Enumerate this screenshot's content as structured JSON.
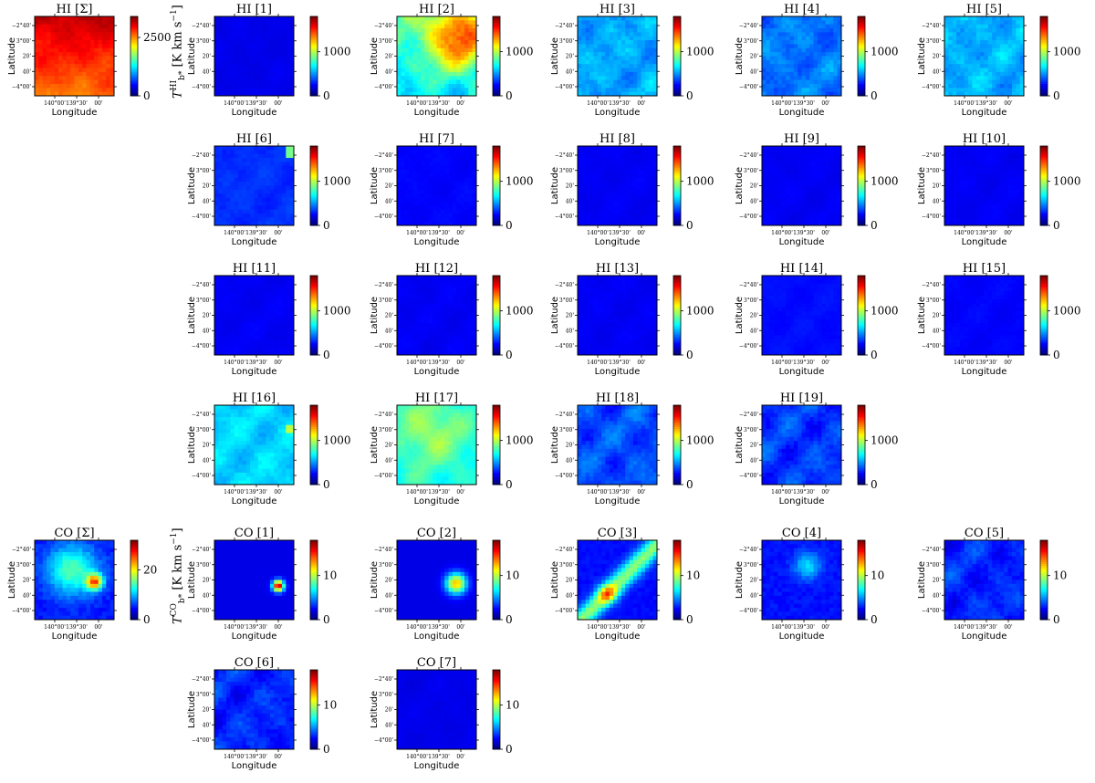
{
  "figure": {
    "hi_unit_label": "T_b*^HI [K km s^-1]",
    "co_unit_label": "T_b*^CO [K km s^-1]"
  },
  "chart_data": {
    "type": "heatmap",
    "common": {
      "xlabel": "Longitude",
      "ylabel": "Latitude",
      "x_ticks": [
        "140°00'",
        "139°30'",
        "00'"
      ],
      "y_ticks": [
        "−2°40'",
        "3°00'",
        "20'",
        "40'",
        "−4°00'"
      ],
      "colormap": "jet"
    },
    "panels": [
      {
        "title": "HI [Σ]",
        "colorbar_max": 3400,
        "colorbar_ticks": [
          0,
          2500
        ],
        "mean_level": 0.82,
        "pattern": "sum_hi"
      },
      {
        "title": "HI [1]",
        "colorbar_max": 1800,
        "colorbar_ticks": [
          0,
          1000
        ],
        "mean_level": 0.1,
        "pattern": "flat"
      },
      {
        "title": "HI [2]",
        "colorbar_max": 1800,
        "colorbar_ticks": [
          0,
          1000
        ],
        "mean_level": 0.62,
        "pattern": "hi2"
      },
      {
        "title": "HI [3]",
        "colorbar_max": 1800,
        "colorbar_ticks": [
          0,
          1000
        ],
        "mean_level": 0.27,
        "pattern": "patchy"
      },
      {
        "title": "HI [4]",
        "colorbar_max": 1800,
        "colorbar_ticks": [
          0,
          1000
        ],
        "mean_level": 0.22,
        "pattern": "patchy"
      },
      {
        "title": "HI [5]",
        "colorbar_max": 1800,
        "colorbar_ticks": [
          0,
          1000
        ],
        "mean_level": 0.28,
        "pattern": "patchy"
      },
      {
        "title": "HI [6]",
        "colorbar_max": 1800,
        "colorbar_ticks": [
          0,
          1000
        ],
        "mean_level": 0.16,
        "pattern": "corner"
      },
      {
        "title": "HI [7]",
        "colorbar_max": 1800,
        "colorbar_ticks": [
          0,
          1000
        ],
        "mean_level": 0.12,
        "pattern": "flat"
      },
      {
        "title": "HI [8]",
        "colorbar_max": 1800,
        "colorbar_ticks": [
          0,
          1000
        ],
        "mean_level": 0.11,
        "pattern": "flat"
      },
      {
        "title": "HI [9]",
        "colorbar_max": 1800,
        "colorbar_ticks": [
          0,
          1000
        ],
        "mean_level": 0.11,
        "pattern": "flat"
      },
      {
        "title": "HI [10]",
        "colorbar_max": 1800,
        "colorbar_ticks": [
          0,
          1000
        ],
        "mean_level": 0.11,
        "pattern": "flat"
      },
      {
        "title": "HI [11]",
        "colorbar_max": 1800,
        "colorbar_ticks": [
          0,
          1000
        ],
        "mean_level": 0.11,
        "pattern": "flat"
      },
      {
        "title": "HI [12]",
        "colorbar_max": 1800,
        "colorbar_ticks": [
          0,
          1000
        ],
        "mean_level": 0.11,
        "pattern": "flat"
      },
      {
        "title": "HI [13]",
        "colorbar_max": 1800,
        "colorbar_ticks": [
          0,
          1000
        ],
        "mean_level": 0.11,
        "pattern": "flat"
      },
      {
        "title": "HI [14]",
        "colorbar_max": 1800,
        "colorbar_ticks": [
          0,
          1000
        ],
        "mean_level": 0.13,
        "pattern": "flat"
      },
      {
        "title": "HI [15]",
        "colorbar_max": 1800,
        "colorbar_ticks": [
          0,
          1000
        ],
        "mean_level": 0.12,
        "pattern": "flat"
      },
      {
        "title": "HI [16]",
        "colorbar_max": 1800,
        "colorbar_ticks": [
          0,
          1000
        ],
        "mean_level": 0.32,
        "pattern": "corner_patchy"
      },
      {
        "title": "HI [17]",
        "colorbar_max": 1800,
        "colorbar_ticks": [
          0,
          1000
        ],
        "mean_level": 0.4,
        "pattern": "hi17"
      },
      {
        "title": "HI [18]",
        "colorbar_max": 1800,
        "colorbar_ticks": [
          0,
          1000
        ],
        "mean_level": 0.18,
        "pattern": "patchy"
      },
      {
        "title": "HI [19]",
        "colorbar_max": 1800,
        "colorbar_ticks": [
          0,
          1000
        ],
        "mean_level": 0.16,
        "pattern": "patchy"
      },
      {
        "title": "CO [Σ]",
        "colorbar_max": 32,
        "colorbar_ticks": [
          0,
          20
        ],
        "mean_level": 0.22,
        "pattern": "co_sum"
      },
      {
        "title": "CO [1]",
        "colorbar_max": 18,
        "colorbar_ticks": [
          0,
          10
        ],
        "mean_level": 0.1,
        "pattern": "co1"
      },
      {
        "title": "CO [2]",
        "colorbar_max": 18,
        "colorbar_ticks": [
          0,
          10
        ],
        "mean_level": 0.1,
        "pattern": "co2"
      },
      {
        "title": "CO [3]",
        "colorbar_max": 18,
        "colorbar_ticks": [
          0,
          10
        ],
        "mean_level": 0.16,
        "pattern": "co3"
      },
      {
        "title": "CO [4]",
        "colorbar_max": 18,
        "colorbar_ticks": [
          0,
          10
        ],
        "mean_level": 0.12,
        "pattern": "co4"
      },
      {
        "title": "CO [5]",
        "colorbar_max": 18,
        "colorbar_ticks": [
          0,
          10
        ],
        "mean_level": 0.14,
        "pattern": "patchy"
      },
      {
        "title": "CO [6]",
        "colorbar_max": 18,
        "colorbar_ticks": [
          0,
          10
        ],
        "mean_level": 0.14,
        "pattern": "patchy"
      },
      {
        "title": "CO [7]",
        "colorbar_max": 18,
        "colorbar_ticks": [
          0,
          10
        ],
        "mean_level": 0.1,
        "pattern": "flat"
      }
    ]
  }
}
